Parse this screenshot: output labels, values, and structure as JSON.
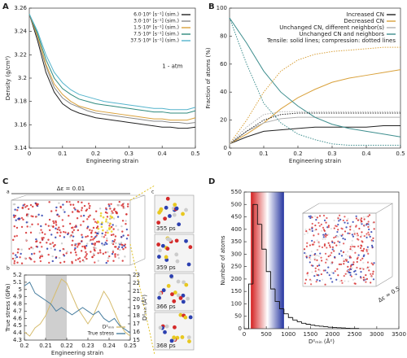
{
  "panel_labels": [
    "A",
    "B",
    "C",
    "D"
  ],
  "image_c": {
    "sublabels": [
      "a",
      "b",
      "c"
    ],
    "strain_label": "Δε = 0.01",
    "times": [
      "355 ps",
      "359 ps",
      "366 ps",
      "368 ps"
    ]
  },
  "image_d": {
    "strain_label": "Δε = 0.5"
  },
  "chart_data": [
    {
      "type": "line",
      "x_label": "Engineering strain",
      "y_label": "Density (g/cm³)",
      "xlim": [
        0,
        0.5
      ],
      "xticks": [
        0,
        0.1,
        0.2,
        0.3,
        0.4,
        0.5
      ],
      "ylim": [
        3.14,
        3.26
      ],
      "yticks": [
        3.14,
        3.16,
        3.18,
        3.2,
        3.22,
        3.24,
        3.26
      ],
      "legend": "upper right",
      "annotation": "1 - atm",
      "x": [
        0,
        0.025,
        0.05,
        0.075,
        0.1,
        0.125,
        0.15,
        0.175,
        0.2,
        0.225,
        0.25,
        0.275,
        0.3,
        0.325,
        0.35,
        0.375,
        0.4,
        0.425,
        0.45,
        0.475,
        0.5
      ],
      "series": [
        {
          "name": "6.0·10⁶ [s⁻¹] (sim.)",
          "color": "#222222",
          "values": [
            3.255,
            3.232,
            3.205,
            3.188,
            3.178,
            3.173,
            3.17,
            3.168,
            3.166,
            3.165,
            3.164,
            3.163,
            3.162,
            3.161,
            3.16,
            3.159,
            3.158,
            3.158,
            3.157,
            3.157,
            3.158
          ]
        },
        {
          "name": "3.0·10⁷ [s⁻¹] (sim.)",
          "color": "#8a8a8a",
          "values": [
            3.255,
            3.235,
            3.21,
            3.192,
            3.183,
            3.178,
            3.175,
            3.172,
            3.17,
            3.169,
            3.168,
            3.167,
            3.166,
            3.165,
            3.164,
            3.163,
            3.163,
            3.162,
            3.162,
            3.161,
            3.162
          ]
        },
        {
          "name": "1.5·10⁸ [s⁻¹] (sim.)",
          "color": "#d9a13b",
          "values": [
            3.255,
            3.236,
            3.212,
            3.195,
            3.186,
            3.18,
            3.176,
            3.174,
            3.172,
            3.171,
            3.17,
            3.169,
            3.168,
            3.167,
            3.166,
            3.165,
            3.165,
            3.164,
            3.164,
            3.164,
            3.166
          ]
        },
        {
          "name": "7.5·10⁸ [s⁻¹] (sim.)",
          "color": "#2f8a7e",
          "values": [
            3.255,
            3.238,
            3.216,
            3.2,
            3.191,
            3.186,
            3.182,
            3.18,
            3.178,
            3.177,
            3.176,
            3.175,
            3.174,
            3.173,
            3.172,
            3.171,
            3.171,
            3.17,
            3.17,
            3.17,
            3.172
          ]
        },
        {
          "name": "37.5·10⁸ [s⁻¹] (sim.)",
          "color": "#55b4cc",
          "values": [
            3.255,
            3.24,
            3.22,
            3.205,
            3.196,
            3.19,
            3.186,
            3.184,
            3.182,
            3.18,
            3.179,
            3.178,
            3.177,
            3.176,
            3.175,
            3.174,
            3.174,
            3.173,
            3.173,
            3.173,
            3.175
          ]
        }
      ]
    },
    {
      "type": "line",
      "x_label": "Engineering strain",
      "y_label": "Fraction of atoms (%)",
      "xlim": [
        0,
        0.5
      ],
      "xticks": [
        0,
        0.1,
        0.2,
        0.3,
        0.4,
        0.5
      ],
      "ylim": [
        0,
        100
      ],
      "yticks": [
        0,
        20,
        40,
        60,
        80,
        100
      ],
      "legend": "upper right",
      "note": "Tensile: solid lines; compression: dotted lines",
      "x": [
        0,
        0.05,
        0.1,
        0.15,
        0.2,
        0.25,
        0.3,
        0.35,
        0.4,
        0.45,
        0.5
      ],
      "series": [
        {
          "name": "Increased CN",
          "color": "#222222",
          "values": [
            3,
            8,
            12,
            13,
            14,
            15,
            15,
            15,
            15,
            16,
            16
          ]
        },
        {
          "name": "Decreased CN",
          "color": "#d9a13b",
          "values": [
            3,
            10,
            18,
            28,
            36,
            42,
            47,
            50,
            52,
            54,
            56
          ]
        },
        {
          "name": "Unchanged CN, different neighbor(s)",
          "color": "#b0b0b0",
          "values": [
            3,
            12,
            18,
            21,
            22,
            22,
            22,
            22,
            22,
            22,
            22
          ]
        },
        {
          "name": "Unchanged CN and neighbors",
          "color": "#3e8e8e",
          "values": [
            93,
            75,
            55,
            40,
            30,
            22,
            17,
            14,
            12,
            10,
            8
          ]
        },
        {
          "color": "#222222",
          "dash": true,
          "values": [
            3,
            12,
            20,
            24,
            25,
            25,
            25,
            25,
            25,
            25,
            25
          ]
        },
        {
          "color": "#d9a13b",
          "dash": true,
          "values": [
            3,
            20,
            40,
            55,
            63,
            67,
            69,
            70,
            71,
            72,
            72
          ]
        },
        {
          "color": "#b0b0b0",
          "dash": true,
          "values": [
            3,
            15,
            24,
            26,
            26,
            26,
            26,
            26,
            26,
            26,
            26
          ]
        },
        {
          "color": "#3e8e8e",
          "dash": true,
          "values": [
            93,
            60,
            32,
            18,
            10,
            6,
            3,
            2,
            2,
            2,
            2
          ]
        }
      ]
    },
    {
      "type": "line",
      "x_label": "Engineering strain",
      "y_label": "True stress (GPa)",
      "y2_label": "D²ₘᵢₙ (Å²)",
      "xlim": [
        0.2,
        0.25
      ],
      "xticks": [
        0.2,
        0.21,
        0.22,
        0.23,
        0.24,
        0.25
      ],
      "ylim": [
        4.3,
        5.2
      ],
      "yticks": [
        4.3,
        4.4,
        4.5,
        4.6,
        4.7,
        4.8,
        4.9,
        5,
        5.1,
        5.2
      ],
      "y2lim": [
        15,
        23
      ],
      "y2ticks": [
        15,
        16,
        17,
        18,
        19,
        20,
        21,
        22,
        23
      ],
      "highlight_range": [
        0.21,
        0.22
      ],
      "legend": "lower right",
      "x": [
        0.2,
        0.2025,
        0.205,
        0.2075,
        0.21,
        0.2125,
        0.215,
        0.2175,
        0.22,
        0.2225,
        0.225,
        0.2275,
        0.23,
        0.2325,
        0.235,
        0.2375,
        0.24,
        0.2425,
        0.245,
        0.2475,
        0.25
      ],
      "series": [
        {
          "name": "D²ₘᵢₙ",
          "color": "#d6bc6e",
          "axis": "y2",
          "values": [
            16,
            15.5,
            16.5,
            17,
            18,
            19.5,
            21,
            22.5,
            22,
            20.5,
            19,
            18,
            17,
            18,
            19.5,
            21,
            20,
            18.5,
            17,
            16,
            15.5
          ]
        },
        {
          "name": "True stress",
          "color": "#4a7fa0",
          "values": [
            5.05,
            5.1,
            4.95,
            4.9,
            4.85,
            4.8,
            4.7,
            4.75,
            4.7,
            4.65,
            4.7,
            4.75,
            4.7,
            4.65,
            4.7,
            4.6,
            4.55,
            4.6,
            4.5,
            4.45,
            4.4
          ]
        }
      ]
    },
    {
      "type": "histogram",
      "x_label": "D²ₘᵢₙ (Å²)",
      "y_label": "Number of atoms",
      "color": "#111111",
      "xlim": [
        0,
        3500
      ],
      "xticks": [
        0,
        500,
        1000,
        1500,
        2000,
        2500,
        3000,
        3500
      ],
      "ylim": [
        0,
        550
      ],
      "yticks": [
        0,
        50,
        100,
        150,
        200,
        250,
        300,
        350,
        400,
        450,
        500,
        550
      ],
      "color_band": {
        "range": [
          150,
          900
        ],
        "colors": [
          "#d42020",
          "#ffffff",
          "#2434a0"
        ]
      },
      "bins": [
        0,
        100,
        200,
        300,
        400,
        500,
        600,
        700,
        800,
        900,
        1000,
        1100,
        1200,
        1300,
        1400,
        1500,
        1600,
        1700,
        1800,
        1900,
        2000,
        2100,
        2200,
        2300,
        2400,
        2500,
        2600
      ],
      "values": [
        0,
        180,
        500,
        420,
        320,
        230,
        160,
        110,
        80,
        60,
        45,
        35,
        28,
        22,
        18,
        15,
        12,
        10,
        8,
        6,
        5,
        4,
        3,
        2,
        1,
        1
      ]
    }
  ]
}
